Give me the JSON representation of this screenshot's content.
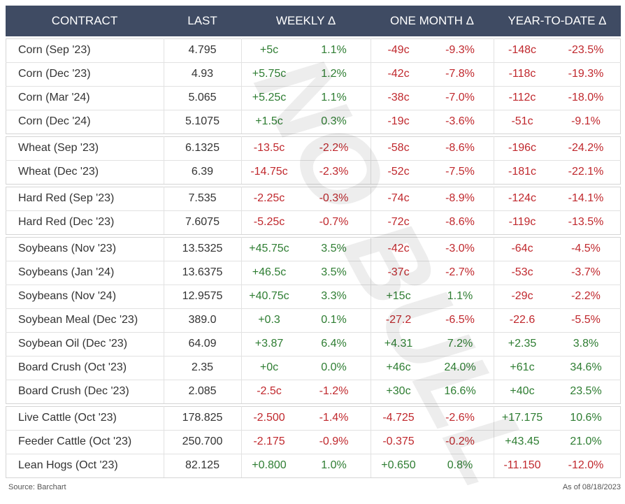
{
  "header": [
    "CONTRACT",
    "LAST",
    "WEEKLY Δ",
    "ONE MONTH Δ",
    "YEAR-TO-DATE Δ"
  ],
  "groups": [
    [
      [
        "Corn (Sep '23)",
        "4.795",
        "+5c",
        "1.1%",
        "-49c",
        "-9.3%",
        "-148c",
        "-23.5%"
      ],
      [
        "Corn (Dec '23)",
        "4.93",
        "+5.75c",
        "1.2%",
        "-42c",
        "-7.8%",
        "-118c",
        "-19.3%"
      ],
      [
        "Corn (Mar '24)",
        "5.065",
        "+5.25c",
        "1.1%",
        "-38c",
        "-7.0%",
        "-112c",
        "-18.0%"
      ],
      [
        "Corn (Dec '24)",
        "5.1075",
        "+1.5c",
        "0.3%",
        "-19c",
        "-3.6%",
        "-51c",
        "-9.1%"
      ]
    ],
    [
      [
        "Wheat (Sep '23)",
        "6.1325",
        "-13.5c",
        "-2.2%",
        "-58c",
        "-8.6%",
        "-196c",
        "-24.2%"
      ],
      [
        "Wheat (Dec '23)",
        "6.39",
        "-14.75c",
        "-2.3%",
        "-52c",
        "-7.5%",
        "-181c",
        "-22.1%"
      ]
    ],
    [
      [
        "Hard Red (Sep '23)",
        "7.535",
        "-2.25c",
        "-0.3%",
        "-74c",
        "-8.9%",
        "-124c",
        "-14.1%"
      ],
      [
        "Hard Red (Dec '23)",
        "7.6075",
        "-5.25c",
        "-0.7%",
        "-72c",
        "-8.6%",
        "-119c",
        "-13.5%"
      ]
    ],
    [
      [
        "Soybeans (Nov '23)",
        "13.5325",
        "+45.75c",
        "3.5%",
        "-42c",
        "-3.0%",
        "-64c",
        "-4.5%"
      ],
      [
        "Soybeans (Jan '24)",
        "13.6375",
        "+46.5c",
        "3.5%",
        "-37c",
        "-2.7%",
        "-53c",
        "-3.7%"
      ],
      [
        "Soybeans (Nov '24)",
        "12.9575",
        "+40.75c",
        "3.3%",
        "+15c",
        "1.1%",
        "-29c",
        "-2.2%"
      ],
      [
        "Soybean Meal (Dec '23)",
        "389.0",
        "+0.3",
        "0.1%",
        "-27.2",
        "-6.5%",
        "-22.6",
        "-5.5%"
      ],
      [
        "Soybean Oil (Dec '23)",
        "64.09",
        "+3.87",
        "6.4%",
        "+4.31",
        "7.2%",
        "+2.35",
        "3.8%"
      ],
      [
        "Board Crush (Oct '23)",
        "2.35",
        "+0c",
        "0.0%",
        "+46c",
        "24.0%",
        "+61c",
        "34.6%"
      ],
      [
        "Board Crush (Dec '23)",
        "2.085",
        "-2.5c",
        "-1.2%",
        "+30c",
        "16.6%",
        "+40c",
        "23.5%"
      ]
    ],
    [
      [
        "Live Cattle (Oct '23)",
        "178.825",
        "-2.500",
        "-1.4%",
        "-4.725",
        "-2.6%",
        "+17.175",
        "10.6%"
      ],
      [
        "Feeder Cattle (Oct '23)",
        "250.700",
        "-2.175",
        "-0.9%",
        "-0.375",
        "-0.2%",
        "+43.45",
        "21.0%"
      ],
      [
        "Lean Hogs (Oct '23)",
        "82.125",
        "+0.800",
        "1.0%",
        "+0.650",
        "0.8%",
        "-11.150",
        "-12.0%"
      ]
    ]
  ],
  "watermark": "NO BULL",
  "footer": {
    "source": "Source: Barchart",
    "date": "As of 08/18/2023"
  }
}
